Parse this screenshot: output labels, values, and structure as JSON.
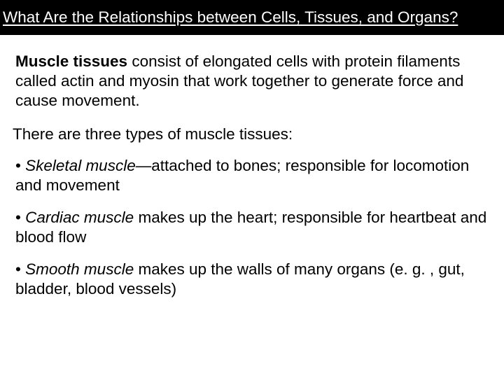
{
  "header": {
    "title": "What Are the Relationships between Cells, Tissues, and Organs?"
  },
  "main": {
    "term": "Muscle tissues",
    "definition_rest": " consist of elongated cells with protein filaments called actin and myosin that work together to generate force and cause movement.",
    "intro": "There are three types of muscle tissues:",
    "bullets": [
      {
        "prefix": "• ",
        "term": "Skeletal muscle",
        "rest": "—attached to bones; responsible for locomotion and movement"
      },
      {
        "prefix": "• ",
        "term": "Cardiac muscle",
        "rest": " makes up the heart; responsible for heartbeat and blood flow"
      },
      {
        "prefix": "• ",
        "term": "Smooth muscle",
        "rest": " makes up the walls of many organs (e. g. , gut, bladder, blood vessels)"
      }
    ]
  },
  "colors": {
    "header_bg": "#000000",
    "header_text": "#ffffff",
    "body_bg": "#ffffff",
    "body_text": "#000000"
  },
  "typography": {
    "header_fontsize": 22.5,
    "body_fontsize": 22.5,
    "font_family": "Arial"
  }
}
